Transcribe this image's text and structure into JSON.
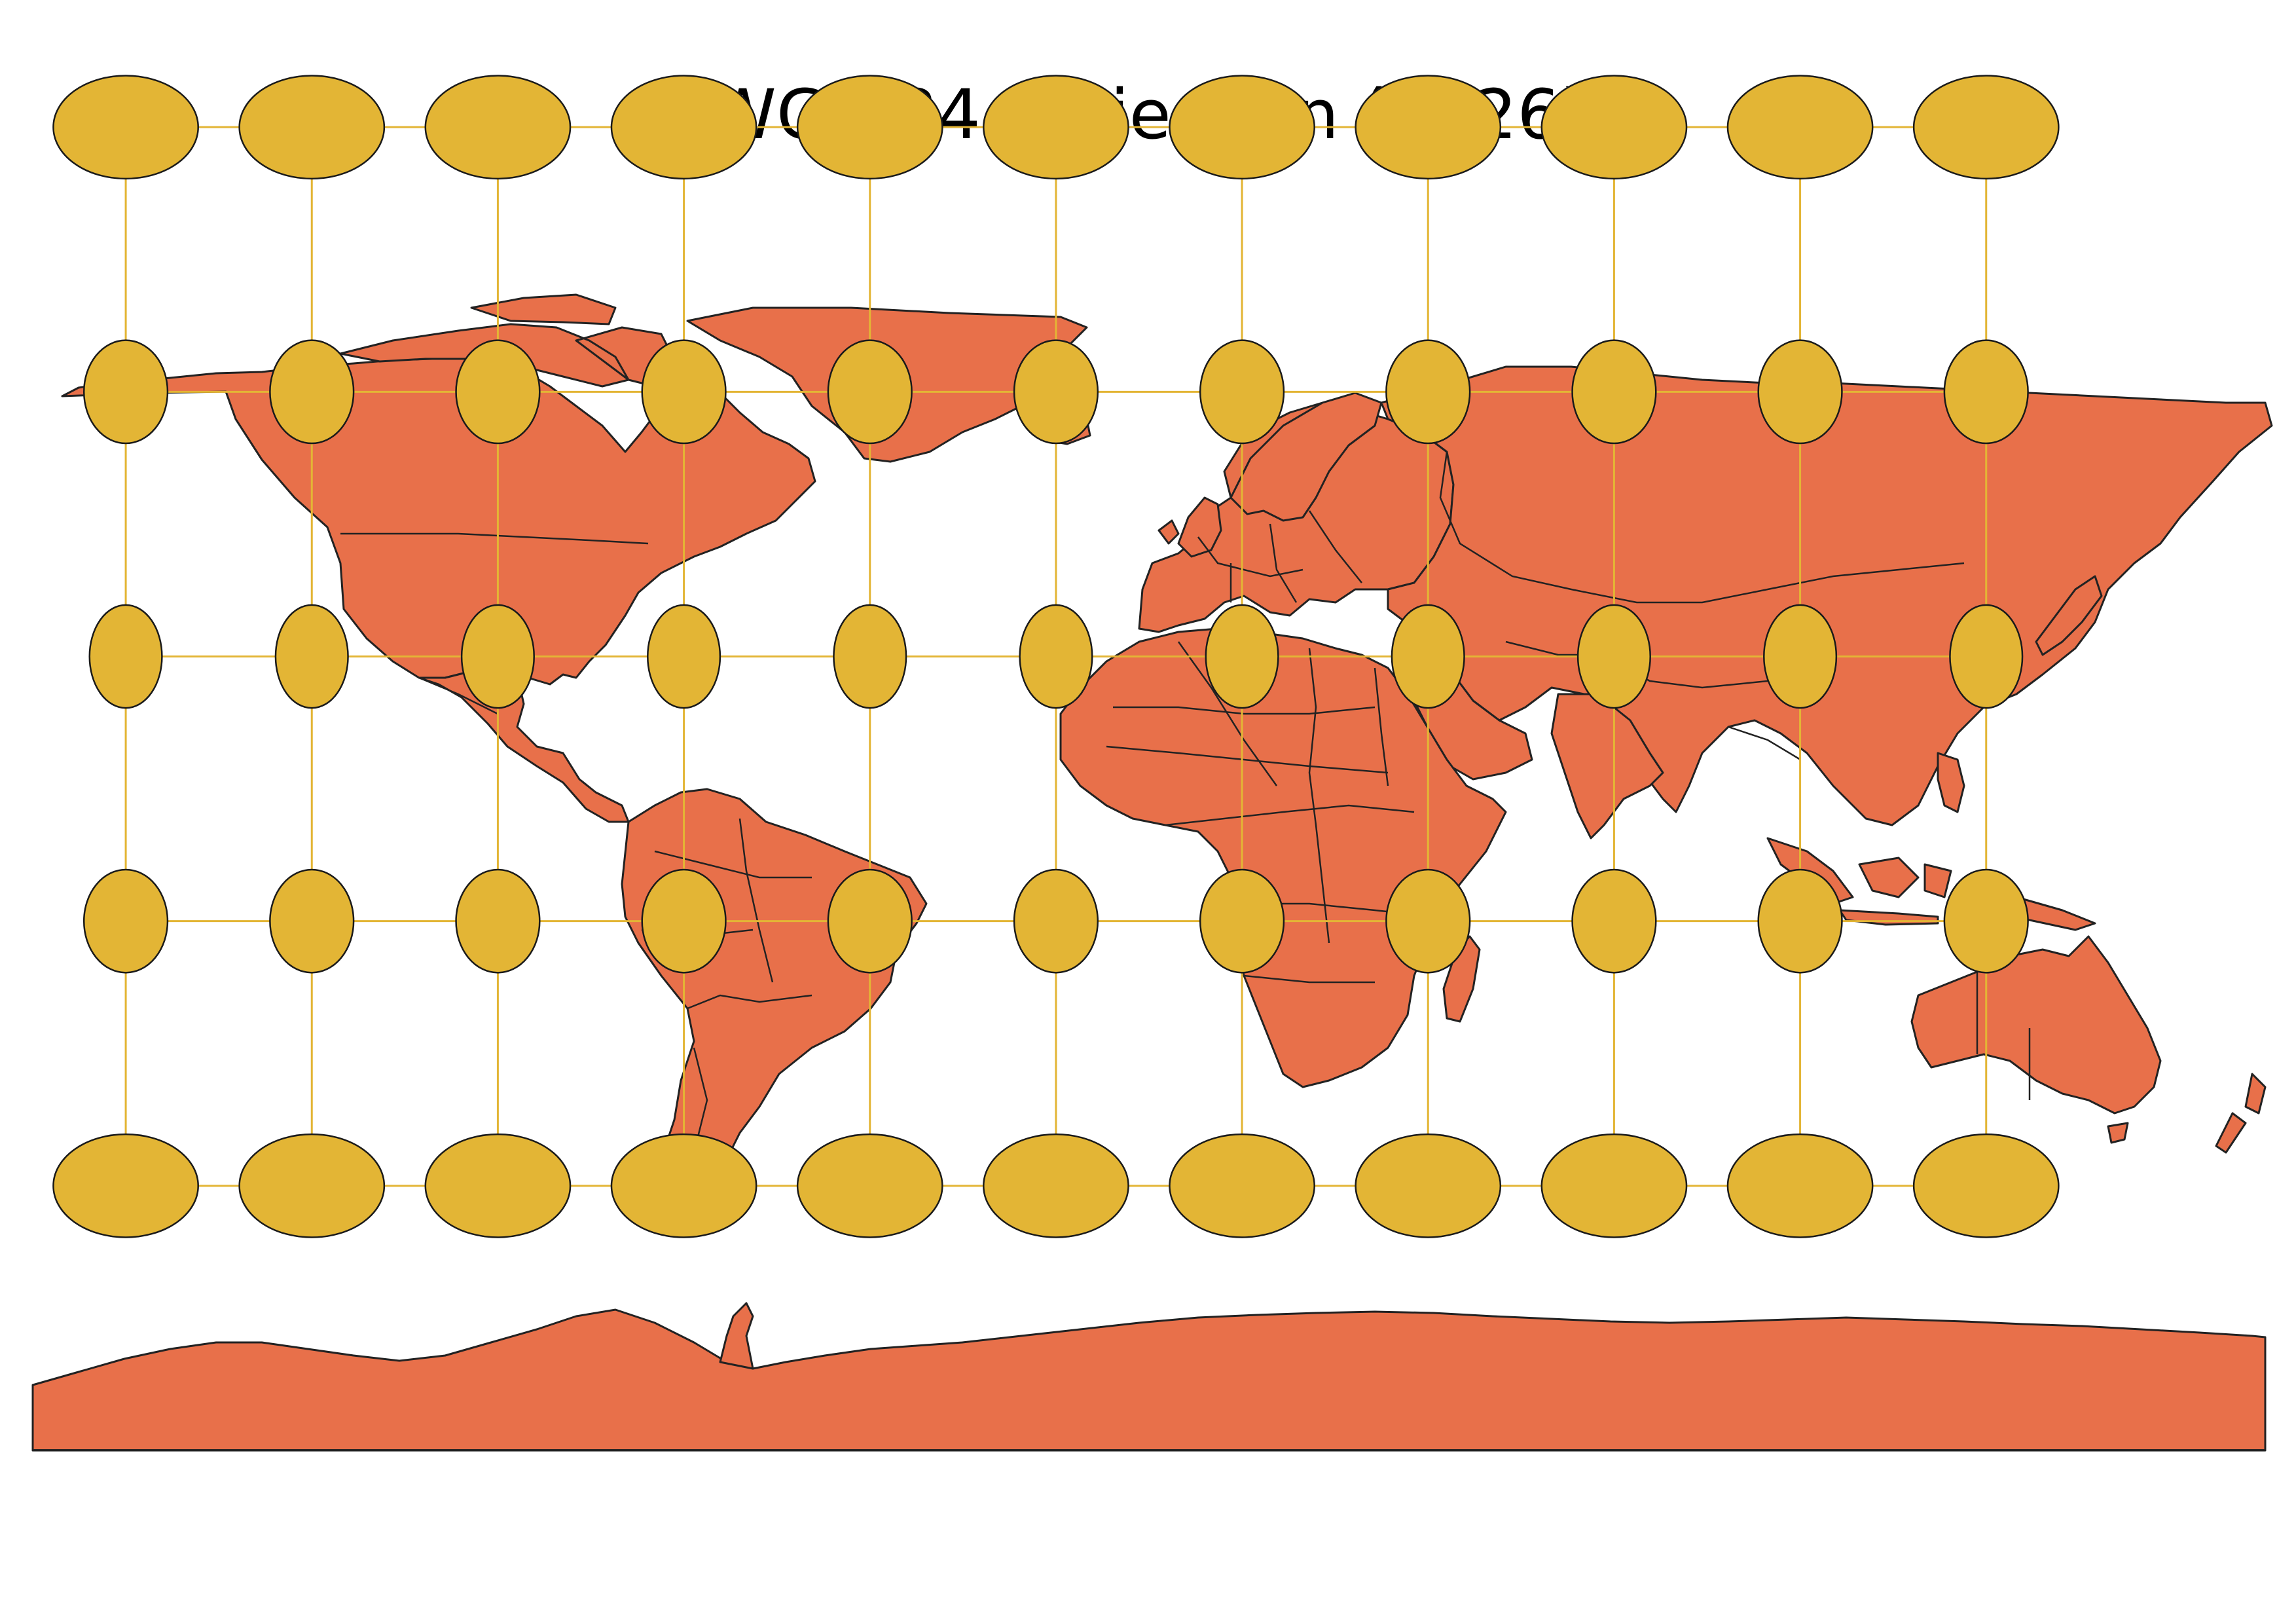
{
  "map": {
    "title": "WGS 84 Projection (4326)",
    "projection": "WGS 84 (EPSG:4326) equirectangular",
    "colors": {
      "land": "#e8704a",
      "land_outline": "#222222",
      "indicatrix_fill": "#e3b535",
      "indicatrix_outline": "#1a1a1a",
      "graticule": "#e3b535",
      "background": "#ffffff"
    },
    "indicatrix": {
      "longitudes": [
        -165,
        -135,
        -105,
        -75,
        -45,
        -15,
        15,
        45,
        75,
        105,
        135
      ],
      "latitudes": [
        60,
        30,
        0,
        -30,
        -60
      ],
      "radius_km": 650
    }
  }
}
